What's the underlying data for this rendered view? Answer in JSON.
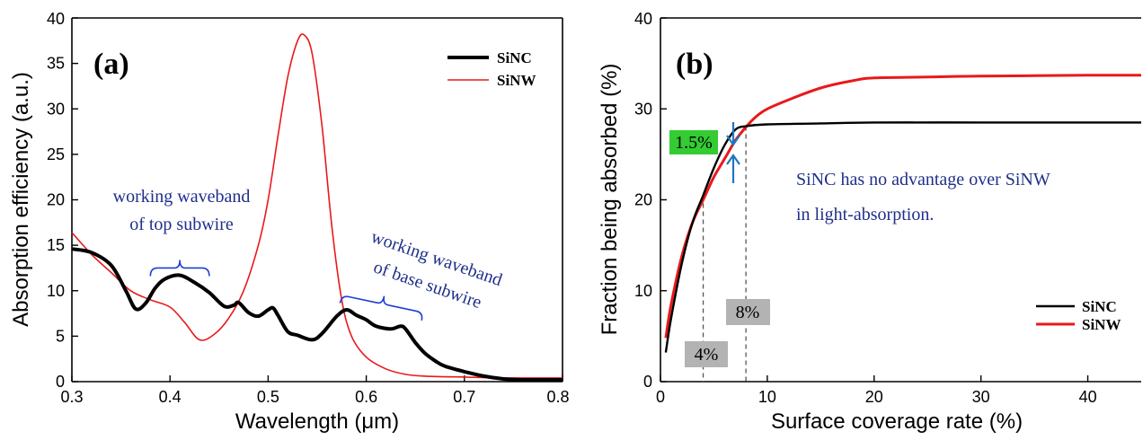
{
  "colors": {
    "SiNC": "#000000",
    "SiNW": "#e8191a",
    "annotation_text": "#1f2f8a",
    "brace": "#1f3fd6",
    "arrow": "#1f77c0",
    "box_green": "#33cc33",
    "box_gray": "#b3b3b3"
  },
  "chart_data": [
    {
      "type": "line",
      "panel_label": "(a)",
      "xlabel": "Wavelength (μm)",
      "ylabel": "Absorption efficiency (a.u.)",
      "xlim": [
        0.3,
        0.8
      ],
      "ylim": [
        0,
        40
      ],
      "xticks": [
        0.3,
        0.4,
        0.5,
        0.6,
        0.7,
        0.8
      ],
      "xtick_labels": [
        "0.3",
        "0.4",
        "0.5",
        "0.6",
        "0.7",
        "0.8"
      ],
      "yticks": [
        0,
        5,
        10,
        15,
        20,
        25,
        30,
        35,
        40
      ],
      "ytick_labels": [
        "0",
        "5",
        "10",
        "15",
        "20",
        "25",
        "30",
        "35",
        "40"
      ],
      "legend_position": "top-right",
      "series": [
        {
          "name": "SiNC",
          "color": "#000000",
          "x": [
            0.3,
            0.32,
            0.34,
            0.355,
            0.365,
            0.375,
            0.385,
            0.395,
            0.41,
            0.425,
            0.44,
            0.455,
            0.465,
            0.47,
            0.48,
            0.49,
            0.5,
            0.505,
            0.51,
            0.52,
            0.53,
            0.545,
            0.555,
            0.57,
            0.58,
            0.59,
            0.6,
            0.61,
            0.625,
            0.635,
            0.64,
            0.65,
            0.66,
            0.67,
            0.68,
            0.7,
            0.72,
            0.74,
            0.76,
            0.8
          ],
          "y": [
            14.6,
            14.2,
            12.8,
            10.0,
            8.0,
            8.6,
            10.3,
            11.3,
            11.7,
            10.9,
            9.8,
            8.3,
            8.4,
            8.7,
            7.6,
            7.2,
            7.9,
            8.1,
            7.3,
            5.5,
            5.1,
            4.6,
            5.3,
            7.2,
            7.9,
            7.3,
            6.8,
            6.1,
            5.8,
            6.1,
            5.8,
            4.3,
            3.1,
            2.3,
            1.7,
            1.1,
            0.6,
            0.3,
            0.2,
            0.2
          ]
        },
        {
          "name": "SiNW",
          "color": "#e8191a",
          "x": [
            0.3,
            0.32,
            0.34,
            0.36,
            0.38,
            0.4,
            0.415,
            0.43,
            0.445,
            0.46,
            0.475,
            0.49,
            0.5,
            0.51,
            0.52,
            0.53,
            0.537,
            0.545,
            0.555,
            0.565,
            0.575,
            0.585,
            0.6,
            0.62,
            0.64,
            0.66,
            0.7,
            0.74,
            0.8
          ],
          "y": [
            16.4,
            14.0,
            12.0,
            10.0,
            9.0,
            8.2,
            6.5,
            4.6,
            5.2,
            7.0,
            10.0,
            15.0,
            20.0,
            27.0,
            33.5,
            37.5,
            38.1,
            36.0,
            28.0,
            17.0,
            9.0,
            5.0,
            2.7,
            1.4,
            0.8,
            0.6,
            0.5,
            0.4,
            0.4
          ]
        }
      ],
      "annotations": [
        {
          "lines": [
            "working waveband",
            "of top subwire"
          ]
        },
        {
          "lines": [
            "working waveband",
            "of base subwire"
          ]
        }
      ],
      "braces": [
        {
          "x_start": 0.38,
          "x_end": 0.44,
          "y": 12.5
        },
        {
          "x_start": 0.575,
          "x_end": 0.66,
          "y": 9.5
        }
      ]
    },
    {
      "type": "line",
      "panel_label": "(b)",
      "xlabel": "Surface coverage rate (%)",
      "ylabel": "Fraction being absorbed  (%)",
      "xlim": [
        0,
        45
      ],
      "ylim": [
        0,
        40
      ],
      "xticks": [
        0,
        10,
        20,
        30,
        40
      ],
      "xtick_labels": [
        "0",
        "10",
        "20",
        "30",
        "40"
      ],
      "yticks": [
        0,
        10,
        20,
        30,
        40
      ],
      "ytick_labels": [
        "0",
        "10",
        "20",
        "30",
        "40"
      ],
      "legend_position": "bottom-right",
      "series": [
        {
          "name": "SiNC",
          "color": "#000000",
          "x": [
            0.5,
            1,
            2,
            3,
            4,
            5,
            6,
            7,
            8,
            10,
            15,
            20,
            30,
            40,
            45
          ],
          "y": [
            3.2,
            7.0,
            13.0,
            17.5,
            20.5,
            23.5,
            26.0,
            27.7,
            28.1,
            28.3,
            28.4,
            28.5,
            28.5,
            28.5,
            28.5
          ]
        },
        {
          "name": "SiNW",
          "color": "#e8191a",
          "x": [
            0.5,
            1,
            2,
            3,
            4,
            5,
            6,
            7,
            8,
            9,
            10,
            12,
            15,
            18,
            20,
            25,
            30,
            40,
            45
          ],
          "y": [
            4.8,
            8.5,
            13.8,
            17.5,
            20.0,
            22.5,
            24.5,
            26.5,
            28.0,
            29.2,
            30.0,
            31.0,
            32.3,
            33.1,
            33.4,
            33.5,
            33.6,
            33.7,
            33.7
          ]
        }
      ],
      "boxes": {
        "diff": "1.5%",
        "x_low": "4%",
        "x_high": "8%"
      },
      "vlines_x": [
        4,
        8
      ],
      "annotation_lines": [
        "SiNC has no advantage over SiNW",
        "in light-absorption."
      ]
    }
  ]
}
